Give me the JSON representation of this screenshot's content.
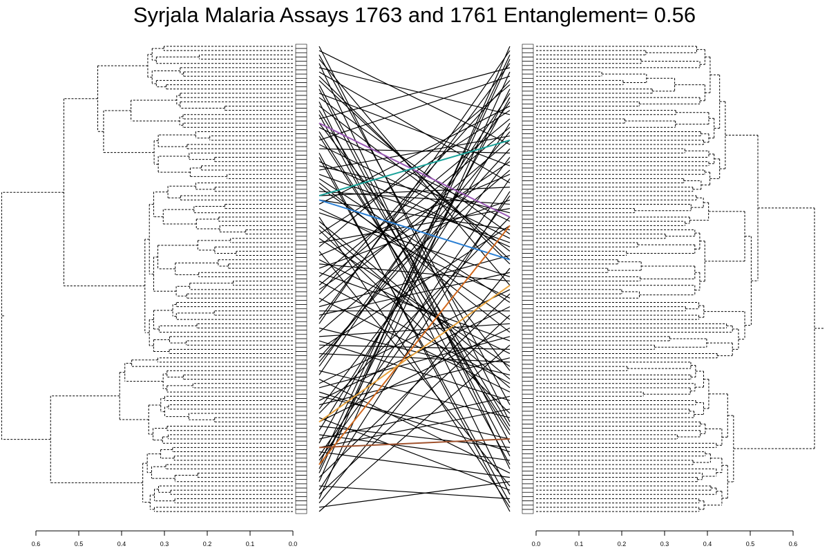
{
  "chart_data": {
    "type": "tanglegram",
    "title": "Syrjala Malaria Assays 1763 and 1761 Entanglement= 0.56",
    "entanglement": 0.56,
    "left_axis": {
      "ticks": [
        0.6,
        0.5,
        0.4,
        0.3,
        0.2,
        0.1,
        0.0
      ],
      "labels": [
        "0.6",
        "0.5",
        "0.4",
        "0.3",
        "0.2",
        "0.1",
        "0.0"
      ],
      "range": [
        0.6,
        0.0
      ]
    },
    "right_axis": {
      "ticks": [
        0.0,
        0.1,
        0.2,
        0.3,
        0.4,
        0.5,
        0.6
      ],
      "labels": [
        "0.0",
        "0.1",
        "0.2",
        "0.3",
        "0.4",
        "0.5",
        "0.6"
      ],
      "range": [
        0.0,
        0.6
      ]
    },
    "leaf_count": 110,
    "left_tree_height": 0.68,
    "right_tree_height": 0.65,
    "left_top_merges": [
      0.68,
      0.65,
      0.49,
      0.47,
      0.43,
      0.37,
      0.3
    ],
    "right_top_merges": [
      0.65,
      0.62,
      0.59,
      0.57,
      0.53,
      0.51,
      0.45
    ],
    "highlight_colors": [
      "#9b59b6",
      "#1aa39a",
      "#2a7fd4",
      "#d2691e",
      "#a0522d",
      "#e8a33d"
    ],
    "line_color": "#000000"
  }
}
